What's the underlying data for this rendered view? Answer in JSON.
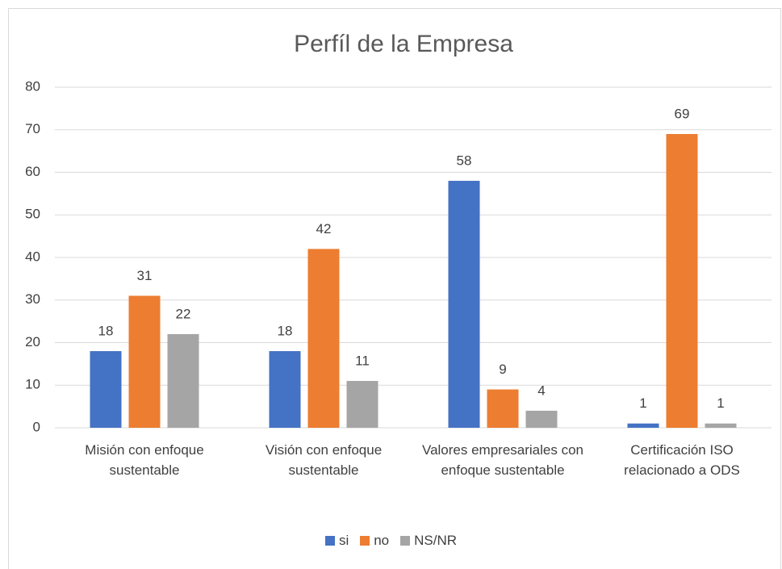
{
  "chart_data": {
    "type": "bar",
    "title": "Perfíl de la Empresa",
    "categories": [
      "Misión con enfoque sustentable",
      "Visión con enfoque sustentable",
      "Valores empresariales con enfoque sustentable",
      "Certificación ISO relacionado a ODS"
    ],
    "series": [
      {
        "name": "si",
        "color": "#4472c4",
        "values": [
          18,
          18,
          58,
          1
        ]
      },
      {
        "name": "no",
        "color": "#ed7d31",
        "values": [
          31,
          42,
          9,
          69
        ]
      },
      {
        "name": "NS/NR",
        "color": "#a5a5a5",
        "values": [
          22,
          11,
          4,
          1
        ]
      }
    ],
    "ylim": [
      0,
      80
    ],
    "yticks": [
      0,
      10,
      20,
      30,
      40,
      50,
      60,
      70,
      80
    ],
    "grid": true,
    "legend": "bottom"
  }
}
